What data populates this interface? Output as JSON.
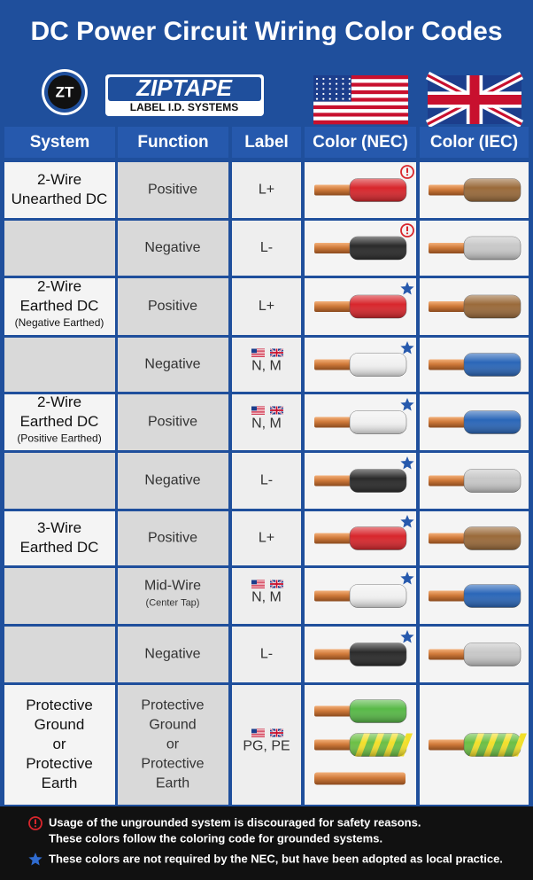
{
  "title": "DC Power Circuit Wiring Color Codes",
  "brand": {
    "logo": "ZT",
    "name": "ZIPTAPE",
    "tagline": "LABEL I.D. SYSTEMS"
  },
  "table": {
    "header": [
      "System",
      "Function",
      "Label",
      "Color (NEC)",
      "Color (IEC)"
    ],
    "rows": [
      {
        "system": [
          "2-Wire",
          "Unearthed DC"
        ],
        "function": [
          "Positive"
        ],
        "label": "L+"
      },
      {
        "system": [],
        "function": [
          "Negative"
        ],
        "label": "L-"
      },
      {
        "system": [
          "2-Wire",
          "Earthed DC"
        ],
        "system_note": "(Negative Earthed)",
        "function": [
          "Positive"
        ],
        "label": "L+"
      },
      {
        "system": [],
        "function": [
          "Negative"
        ],
        "label": "N, M"
      },
      {
        "system": [
          "2-Wire",
          "Earthed DC"
        ],
        "system_note": "(Positive Earthed)",
        "function": [
          "Positive"
        ],
        "label": "N, M"
      },
      {
        "system": [],
        "function": [
          "Negative"
        ],
        "label": "L-"
      },
      {
        "system": [
          "3-Wire",
          "Earthed DC"
        ],
        "function": [
          "Positive"
        ],
        "label": "L+"
      },
      {
        "system": [],
        "function": [
          "Mid-Wire"
        ],
        "function_note": "(Center Tap)",
        "label": "N, M"
      },
      {
        "system": [],
        "function": [
          "Negative"
        ],
        "label": "L-"
      },
      {
        "system": [
          "Protective",
          "Ground",
          "or",
          "Protective",
          "Earth"
        ],
        "function": [
          "Protective",
          "Ground",
          "or",
          "Protective",
          "Earth"
        ],
        "label": "PG, PE"
      }
    ]
  },
  "notes": [
    [
      "Usage of the ungrounded system is discouraged for safety reasons.",
      "These colors follow the coloring code for grounded systems."
    ],
    [
      "These colors are not required by the NEC, but have been adopted as local practice."
    ]
  ]
}
